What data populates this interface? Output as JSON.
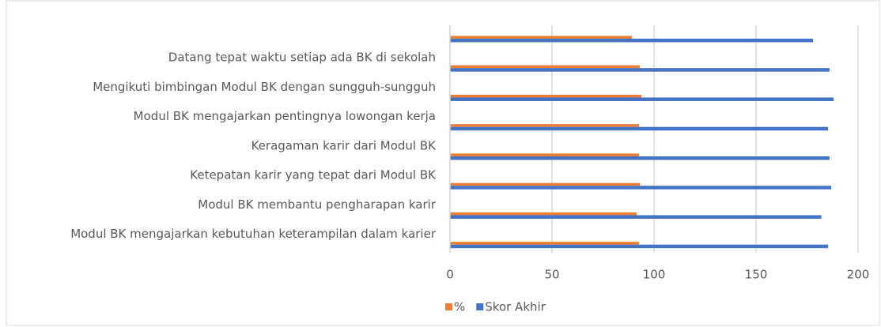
{
  "chart_data": {
    "type": "barh",
    "categories": [
      null,
      "Datang tepat waktu setiap ada BK di sekolah",
      "Mengikuti bimbingan Modul BK dengan sungguh-sungguh",
      "Modul BK mengajarkan pentingnya lowongan kerja",
      "Keragaman karir dari Modul BK",
      "Ketepatan karir yang tepat dari Modul BK",
      "Modul BK membantu pengharapan karir",
      "Modul BK mengajarkan kebutuhan keterampilan dalam karier"
    ],
    "series": [
      {
        "name": "%",
        "color": "#ed7d31",
        "values": [
          89.1,
          93,
          93.8,
          92.6,
          92.6,
          93,
          91.5,
          92.6
        ]
      },
      {
        "name": "Skor Akhir",
        "color": "#4472c4",
        "values": [
          177.9,
          186,
          188,
          185.3,
          186,
          186.8,
          182,
          185.3
        ]
      }
    ],
    "xlim": [
      0,
      200
    ],
    "xticks": [
      0,
      50,
      100,
      150,
      200
    ],
    "grid": true,
    "legend": "bottom"
  }
}
